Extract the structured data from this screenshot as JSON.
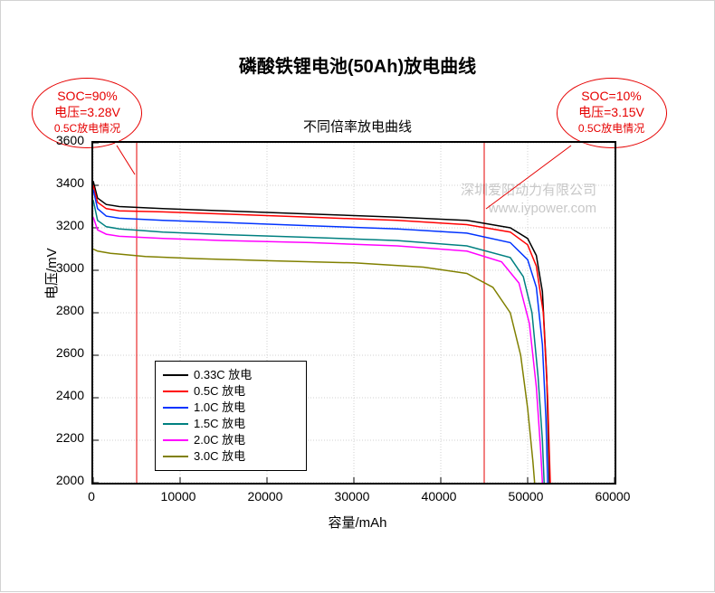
{
  "title": "磷酸铁锂电池(50Ah)放电曲线",
  "subtitle": "不同倍率放电曲线",
  "y_axis_label": "电压/mV",
  "x_axis_label": "容量/mAh",
  "xlim": [
    0,
    60000
  ],
  "ylim": [
    2000,
    3600
  ],
  "xtick_step": 10000,
  "ytick_step": 200,
  "xticks": [
    0,
    10000,
    20000,
    30000,
    40000,
    50000,
    60000
  ],
  "yticks": [
    2000,
    2200,
    2400,
    2600,
    2800,
    3000,
    3200,
    3400,
    3600
  ],
  "background_color": "#ffffff",
  "grid_color": "#d0d0d0",
  "axis_color": "#000000",
  "watermark_line1": "深圳爱阳动力有限公司",
  "watermark_line2": "www.iypower.com",
  "legend": [
    {
      "label": "0.33C 放电",
      "color": "#000000"
    },
    {
      "label": "0.5C 放电",
      "color": "#ff0000"
    },
    {
      "label": "1.0C 放电",
      "color": "#0033ff"
    },
    {
      "label": "1.5C 放电",
      "color": "#008080"
    },
    {
      "label": "2.0C 放电",
      "color": "#ff00ff"
    },
    {
      "label": "3.0C 放电",
      "color": "#808000"
    }
  ],
  "annotations": {
    "left": {
      "soc": "SOC=90%",
      "voltage": "电压=3.28V",
      "condition": "0.5C放电情况",
      "vline_x": 5000
    },
    "right": {
      "soc": "SOC=10%",
      "voltage": "电压=3.15V",
      "condition": "0.5C放电情况",
      "vline_x": 45000
    }
  },
  "series": [
    {
      "name": "0.33C",
      "color": "#000000",
      "line_width": 1.5,
      "points": [
        [
          0,
          3420
        ],
        [
          500,
          3340
        ],
        [
          1500,
          3310
        ],
        [
          3000,
          3300
        ],
        [
          8000,
          3290
        ],
        [
          15000,
          3280
        ],
        [
          25000,
          3265
        ],
        [
          35000,
          3250
        ],
        [
          43000,
          3235
        ],
        [
          48000,
          3200
        ],
        [
          50000,
          3150
        ],
        [
          51000,
          3070
        ],
        [
          51700,
          2900
        ],
        [
          52200,
          2500
        ],
        [
          52500,
          2000
        ]
      ]
    },
    {
      "name": "0.5C",
      "color": "#ff0000",
      "line_width": 1.5,
      "points": [
        [
          0,
          3400
        ],
        [
          500,
          3320
        ],
        [
          1500,
          3290
        ],
        [
          3000,
          3280
        ],
        [
          8000,
          3275
        ],
        [
          15000,
          3265
        ],
        [
          25000,
          3250
        ],
        [
          35000,
          3235
        ],
        [
          43000,
          3215
        ],
        [
          48000,
          3180
        ],
        [
          50000,
          3120
        ],
        [
          51000,
          3020
        ],
        [
          51800,
          2800
        ],
        [
          52300,
          2400
        ],
        [
          52600,
          2000
        ]
      ]
    },
    {
      "name": "1.0C",
      "color": "#0033ff",
      "line_width": 1.5,
      "points": [
        [
          0,
          3380
        ],
        [
          500,
          3290
        ],
        [
          1500,
          3255
        ],
        [
          3000,
          3245
        ],
        [
          8000,
          3235
        ],
        [
          15000,
          3225
        ],
        [
          25000,
          3210
        ],
        [
          35000,
          3195
        ],
        [
          43000,
          3175
        ],
        [
          48000,
          3130
        ],
        [
          50000,
          3050
        ],
        [
          51000,
          2920
        ],
        [
          51700,
          2650
        ],
        [
          52100,
          2300
        ],
        [
          52300,
          2000
        ]
      ]
    },
    {
      "name": "1.5C",
      "color": "#008080",
      "line_width": 1.5,
      "points": [
        [
          0,
          3330
        ],
        [
          500,
          3235
        ],
        [
          1500,
          3205
        ],
        [
          3000,
          3195
        ],
        [
          8000,
          3180
        ],
        [
          15000,
          3168
        ],
        [
          25000,
          3155
        ],
        [
          35000,
          3140
        ],
        [
          43000,
          3115
        ],
        [
          48000,
          3060
        ],
        [
          49500,
          2970
        ],
        [
          50500,
          2800
        ],
        [
          51200,
          2500
        ],
        [
          51700,
          2200
        ],
        [
          51900,
          2000
        ]
      ]
    },
    {
      "name": "2.0C",
      "color": "#ff00ff",
      "line_width": 1.5,
      "points": [
        [
          0,
          3250
        ],
        [
          500,
          3190
        ],
        [
          1500,
          3170
        ],
        [
          3000,
          3160
        ],
        [
          8000,
          3150
        ],
        [
          15000,
          3140
        ],
        [
          25000,
          3130
        ],
        [
          35000,
          3115
        ],
        [
          43000,
          3090
        ],
        [
          47000,
          3040
        ],
        [
          49000,
          2940
        ],
        [
          50200,
          2750
        ],
        [
          51000,
          2450
        ],
        [
          51500,
          2150
        ],
        [
          51700,
          2000
        ]
      ]
    },
    {
      "name": "3.0C",
      "color": "#808000",
      "line_width": 1.5,
      "points": [
        [
          0,
          3100
        ],
        [
          500,
          3090
        ],
        [
          2000,
          3080
        ],
        [
          6000,
          3065
        ],
        [
          12000,
          3055
        ],
        [
          20000,
          3045
        ],
        [
          30000,
          3035
        ],
        [
          38000,
          3015
        ],
        [
          43000,
          2985
        ],
        [
          46000,
          2920
        ],
        [
          48000,
          2800
        ],
        [
          49200,
          2600
        ],
        [
          50000,
          2350
        ],
        [
          50600,
          2100
        ],
        [
          50800,
          2000
        ]
      ]
    }
  ]
}
